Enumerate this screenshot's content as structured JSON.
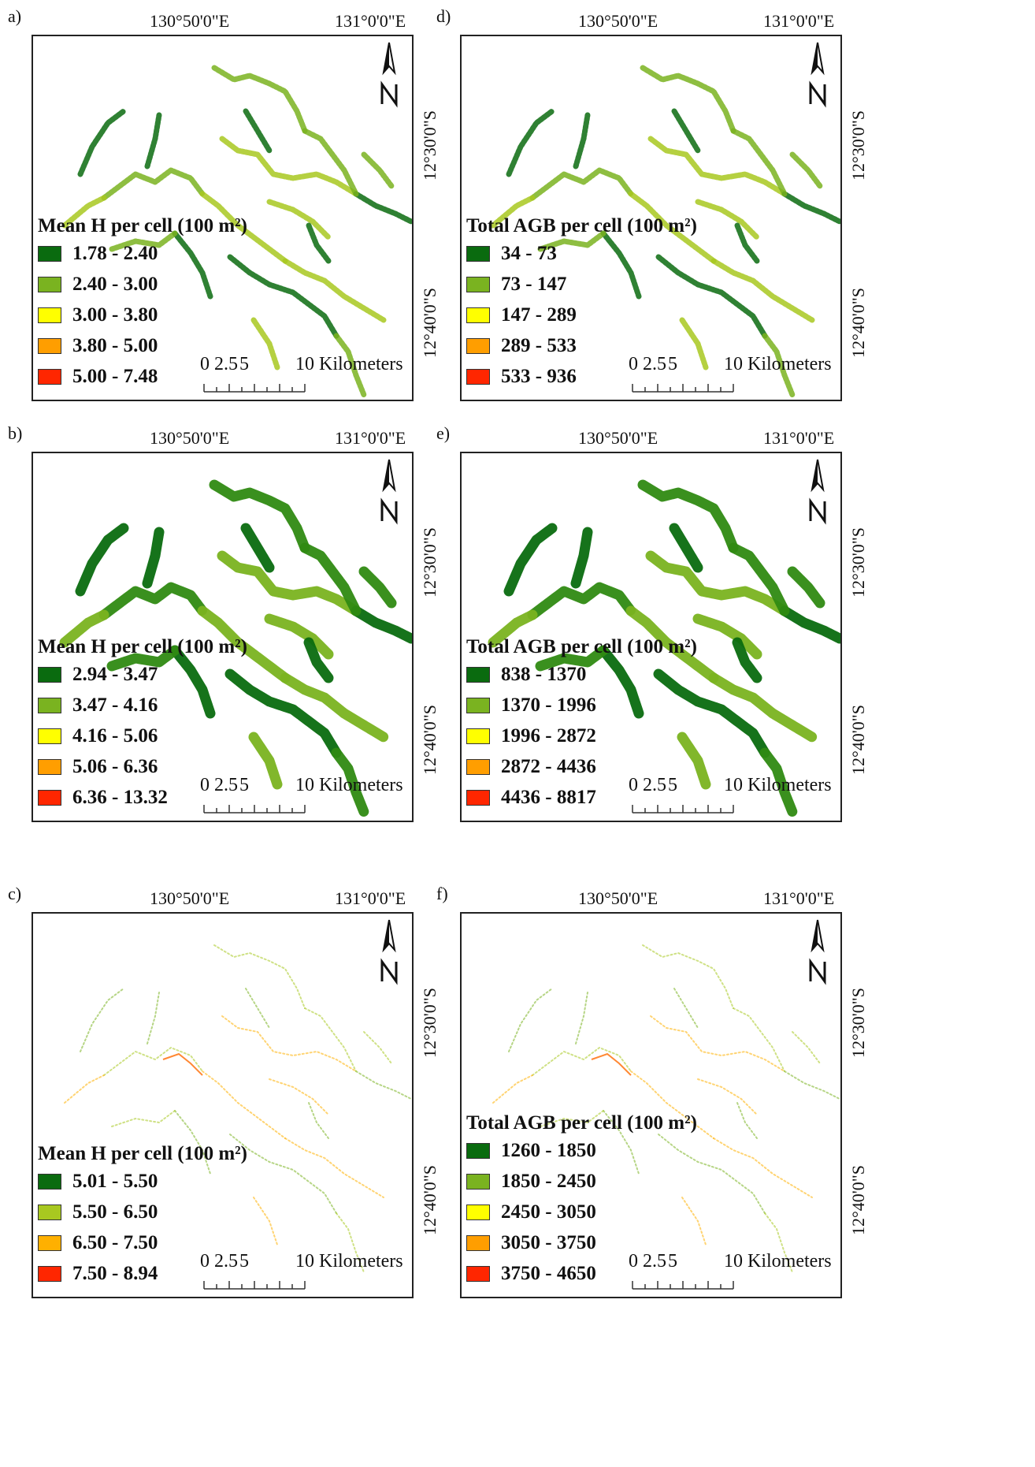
{
  "colors": {
    "dark_green": "#0a6b0f",
    "green": "#7ab320",
    "yellow_green": "#a8c820",
    "yellow": "#ffff00",
    "orange": "#ff9e00",
    "orange_yellow": "#ffb000",
    "red": "#ff2600"
  },
  "map_common": {
    "lon_left": "130°50'0\"E",
    "lon_right": "131°0'0\"E",
    "lat_top": "12°30'0\"S",
    "lat_bottom": "12°40'0\"S",
    "scale_ticks": [
      "0",
      "2.5",
      "5",
      "10 Kilometers"
    ],
    "north_icon": "north-arrow-icon"
  },
  "panels": [
    {
      "letter": "a)",
      "legend_title": "Mean H per cell (100 m²)",
      "density": "medium",
      "classes": [
        {
          "label": "1.78 - 2.40",
          "color": "#0a6b0f"
        },
        {
          "label": "2.40 - 3.00",
          "color": "#7ab320"
        },
        {
          "label": "3.00 - 3.80",
          "color": "#ffff00"
        },
        {
          "label": "3.80 - 5.00",
          "color": "#ff9e00"
        },
        {
          "label": "5.00 - 7.48",
          "color": "#ff2600"
        }
      ]
    },
    {
      "letter": "b)",
      "legend_title": "Mean H per cell (100 m²)",
      "density": "dense",
      "classes": [
        {
          "label": "2.94 - 3.47",
          "color": "#0a6b0f"
        },
        {
          "label": "3.47 - 4.16",
          "color": "#7ab320"
        },
        {
          "label": "4.16 - 5.06",
          "color": "#ffff00"
        },
        {
          "label": "5.06 - 6.36",
          "color": "#ff9e00"
        },
        {
          "label": "6.36 - 13.32",
          "color": "#ff2600"
        }
      ]
    },
    {
      "letter": "c)",
      "legend_title": "Mean H per cell (100 m²)",
      "density": "sparse",
      "classes": [
        {
          "label": "5.01 - 5.50",
          "color": "#0a6b0f"
        },
        {
          "label": "5.50 - 6.50",
          "color": "#a8c820"
        },
        {
          "label": "6.50 - 7.50",
          "color": "#ffb000"
        },
        {
          "label": "7.50 - 8.94",
          "color": "#ff2600"
        }
      ]
    },
    {
      "letter": "d)",
      "legend_title": "Total AGB per cell (100 m²)",
      "density": "medium",
      "classes": [
        {
          "label": "34 - 73",
          "color": "#0a6b0f"
        },
        {
          "label": "73 - 147",
          "color": "#7ab320"
        },
        {
          "label": "147 - 289",
          "color": "#ffff00"
        },
        {
          "label": "289 - 533",
          "color": "#ff9e00"
        },
        {
          "label": "533 - 936",
          "color": "#ff2600"
        }
      ]
    },
    {
      "letter": "e)",
      "legend_title": "Total AGB per cell (100 m²)",
      "density": "dense",
      "classes": [
        {
          "label": "838 - 1370",
          "color": "#0a6b0f"
        },
        {
          "label": "1370 - 1996",
          "color": "#7ab320"
        },
        {
          "label": "1996 - 2872",
          "color": "#ffff00"
        },
        {
          "label": "2872 - 4436",
          "color": "#ff9e00"
        },
        {
          "label": "4436 - 8817",
          "color": "#ff2600"
        }
      ]
    },
    {
      "letter": "f)",
      "legend_title": "Total AGB per cell (100 m²)",
      "density": "sparse",
      "classes": [
        {
          "label": "1260 - 1850",
          "color": "#0a6b0f"
        },
        {
          "label": "1850 - 2450",
          "color": "#7ab320"
        },
        {
          "label": "2450 - 3050",
          "color": "#ffff00"
        },
        {
          "label": "3050 - 3750",
          "color": "#ff9e00"
        },
        {
          "label": "3750 - 4650",
          "color": "#ff2600"
        }
      ]
    }
  ]
}
